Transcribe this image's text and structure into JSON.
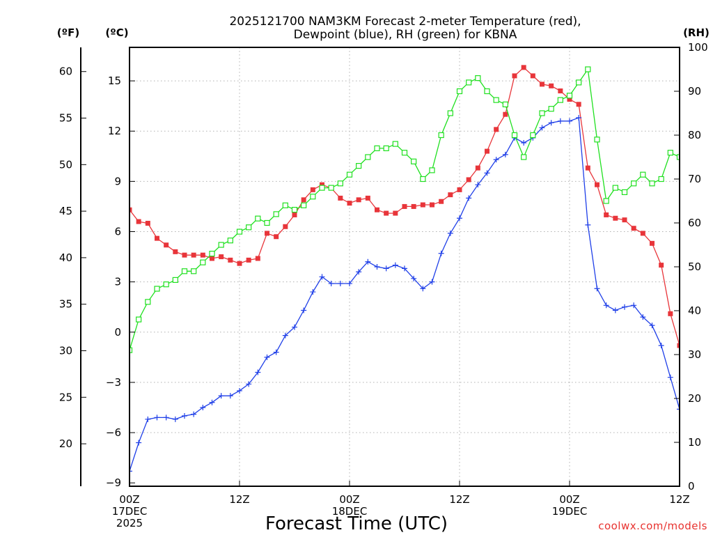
{
  "chart_data": {
    "type": "line",
    "title": [
      "2025121700 NAM3KM Forecast 2-meter Temperature (red),",
      "Dewpoint (blue), RH (green) for KBNA"
    ],
    "xlabel": "Forecast Time (UTC)",
    "credit": "coolwx.com/models",
    "units": {
      "fahrenheit": "(ºF)",
      "celsius": "(ºC)",
      "rh": "(RH)"
    },
    "x_range_hours": [
      0,
      60
    ],
    "x_ticks": [
      {
        "hour": 0,
        "lines": [
          "00Z",
          "17DEC",
          "2025"
        ]
      },
      {
        "hour": 12,
        "lines": [
          "12Z"
        ]
      },
      {
        "hour": 24,
        "lines": [
          "00Z",
          "18DEC"
        ]
      },
      {
        "hour": 36,
        "lines": [
          "12Z"
        ]
      },
      {
        "hour": 48,
        "lines": [
          "00Z",
          "19DEC"
        ]
      },
      {
        "hour": 60,
        "lines": [
          "12Z"
        ]
      }
    ],
    "celsius_axis": {
      "range": [
        -9.2,
        17.0
      ],
      "ticks": [
        "15",
        "12",
        "9",
        "6",
        "3",
        "0",
        "−3",
        "−6",
        "−9"
      ],
      "tick_values": [
        15,
        12,
        9,
        6,
        3,
        0,
        -3,
        -6,
        -9
      ]
    },
    "fahrenheit_axis": {
      "ticks": [
        "60",
        "55",
        "50",
        "45",
        "40",
        "35",
        "30",
        "25",
        "20"
      ],
      "tick_values": [
        60,
        55,
        50,
        45,
        40,
        35,
        30,
        25,
        20
      ]
    },
    "rh_axis": {
      "range": [
        0,
        100
      ],
      "ticks": [
        "100",
        "90",
        "80",
        "70",
        "60",
        "50",
        "40",
        "30",
        "20",
        "10",
        "0"
      ],
      "tick_values": [
        100,
        90,
        80,
        70,
        60,
        50,
        40,
        30,
        20,
        10,
        0
      ]
    },
    "grid_hours": [
      12,
      24,
      36,
      48
    ],
    "grid_celsius": [
      15,
      12,
      9,
      6,
      3,
      0,
      -3,
      -6
    ],
    "series": [
      {
        "name": "2-meter Temperature",
        "unit": "C",
        "color": "#e8353a",
        "marker": "filled-square",
        "hours": [
          0,
          1,
          2,
          3,
          4,
          5,
          6,
          7,
          8,
          9,
          10,
          11,
          12,
          13,
          14,
          15,
          16,
          17,
          18,
          19,
          20,
          21,
          22,
          23,
          24,
          25,
          26,
          27,
          28,
          29,
          30,
          31,
          32,
          33,
          34,
          35,
          36,
          37,
          38,
          39,
          40,
          41,
          42,
          43,
          44,
          45,
          46,
          47,
          48,
          49,
          50,
          51,
          52,
          53,
          54,
          55,
          56,
          57,
          58,
          59,
          60
        ],
        "values": [
          7.3,
          6.6,
          6.5,
          5.6,
          5.2,
          4.8,
          4.6,
          4.6,
          4.6,
          4.4,
          4.5,
          4.3,
          4.1,
          4.3,
          4.4,
          5.9,
          5.7,
          6.3,
          7.0,
          7.9,
          8.5,
          8.8,
          8.6,
          8.0,
          7.7,
          7.9,
          8.0,
          7.3,
          7.1,
          7.1,
          7.5,
          7.5,
          7.6,
          7.6,
          7.8,
          8.2,
          8.5,
          9.1,
          9.8,
          10.8,
          12.1,
          13.0,
          15.3,
          15.8,
          15.3,
          14.8,
          14.7,
          14.4,
          13.9,
          13.6,
          9.8,
          8.8,
          7.0,
          6.8,
          6.7,
          6.2,
          5.9,
          5.3,
          4.0,
          1.1,
          -0.8
        ]
      },
      {
        "name": "Dewpoint",
        "unit": "C",
        "color": "#1f3fe8",
        "marker": "plus",
        "hours": [
          0,
          1,
          2,
          3,
          4,
          5,
          6,
          7,
          8,
          9,
          10,
          11,
          12,
          13,
          14,
          15,
          16,
          17,
          18,
          19,
          20,
          21,
          22,
          23,
          24,
          25,
          26,
          27,
          28,
          29,
          30,
          31,
          32,
          33,
          34,
          35,
          36,
          37,
          38,
          39,
          40,
          41,
          42,
          43,
          44,
          45,
          46,
          47,
          48,
          49,
          50,
          51,
          52,
          53,
          54,
          55,
          56,
          57,
          58,
          59,
          60
        ],
        "values": [
          -8.3,
          -6.6,
          -5.2,
          -5.1,
          -5.1,
          -5.2,
          -5.0,
          -4.9,
          -4.5,
          -4.2,
          -3.8,
          -3.8,
          -3.5,
          -3.1,
          -2.4,
          -1.5,
          -1.2,
          -0.2,
          0.3,
          1.3,
          2.4,
          3.3,
          2.9,
          2.9,
          2.9,
          3.6,
          4.2,
          3.9,
          3.8,
          4.0,
          3.8,
          3.2,
          2.6,
          3.0,
          4.7,
          5.9,
          6.8,
          8.0,
          8.8,
          9.5,
          10.3,
          10.6,
          11.6,
          11.3,
          11.6,
          12.2,
          12.5,
          12.6,
          12.6,
          12.8,
          6.4,
          2.6,
          1.6,
          1.3,
          1.5,
          1.6,
          0.9,
          0.4,
          -0.8,
          -2.7,
          -4.6
        ]
      },
      {
        "name": "RH",
        "unit": "%",
        "color": "#1fe01f",
        "marker": "open-square",
        "hours": [
          0,
          1,
          2,
          3,
          4,
          5,
          6,
          7,
          8,
          9,
          10,
          11,
          12,
          13,
          14,
          15,
          16,
          17,
          18,
          19,
          20,
          21,
          22,
          23,
          24,
          25,
          26,
          27,
          28,
          29,
          30,
          31,
          32,
          33,
          34,
          35,
          36,
          37,
          38,
          39,
          40,
          41,
          42,
          43,
          44,
          45,
          46,
          47,
          48,
          49,
          50,
          51,
          52,
          53,
          54,
          55,
          56,
          57,
          58,
          59,
          60
        ],
        "values": [
          31,
          38,
          42,
          45,
          46,
          47,
          49,
          49,
          51,
          53,
          55,
          56,
          58,
          59,
          61,
          60,
          62,
          64,
          63,
          64,
          66,
          68,
          68,
          69,
          71,
          73,
          75,
          77,
          77,
          78,
          76,
          74,
          70,
          72,
          80,
          85,
          90,
          92,
          93,
          90,
          88,
          87,
          80,
          75,
          80,
          85,
          86,
          88,
          89,
          92,
          95,
          79,
          65,
          68,
          67,
          69,
          71,
          69,
          70,
          76,
          75
        ]
      }
    ]
  }
}
